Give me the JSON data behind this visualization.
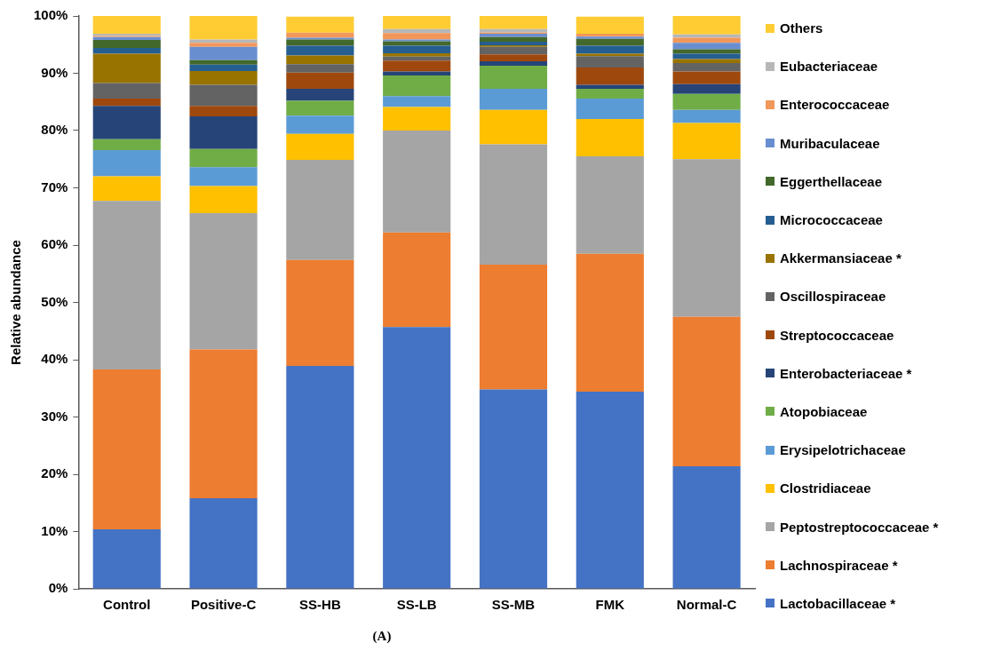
{
  "chart_data": {
    "type": "bar",
    "stacked": true,
    "ylabel": "Relative abundance",
    "legend": "right",
    "grid": false,
    "categories": [
      "Control",
      "Positive-C",
      "SS-HB",
      "SS-LB",
      "SS-MB",
      "FMK",
      "Normal-C"
    ],
    "ylim": [
      0,
      100
    ],
    "yticks": [
      {
        "value": 0,
        "label": "0%"
      },
      {
        "value": 10,
        "label": "10%"
      },
      {
        "value": 20,
        "label": "20%"
      },
      {
        "value": 30,
        "label": "30%"
      },
      {
        "value": 40,
        "label": "40%"
      },
      {
        "value": 50,
        "label": "50%"
      },
      {
        "value": 60,
        "label": "60%"
      },
      {
        "value": 70,
        "label": "70%"
      },
      {
        "value": 80,
        "label": "80%"
      },
      {
        "value": 90,
        "label": "90%"
      },
      {
        "value": 100,
        "label": "100%"
      }
    ],
    "series": [
      {
        "name": "Lactobacillaceae *",
        "color": "#4472c4",
        "values": [
          10.4,
          15.8,
          38.9,
          45.7,
          34.8,
          34.4,
          21.4
        ]
      },
      {
        "name": "Lachnospiraceae *",
        "color": "#ed7d31",
        "values": [
          27.9,
          26.0,
          18.5,
          16.5,
          21.8,
          24.1,
          26.1
        ]
      },
      {
        "name": "Peptostreptococcaceae *",
        "color": "#a5a5a5",
        "values": [
          29.4,
          23.8,
          17.5,
          17.8,
          21.0,
          17.0,
          27.5
        ]
      },
      {
        "name": "Clostridiaceae",
        "color": "#ffc000",
        "values": [
          4.3,
          4.7,
          4.5,
          4.1,
          6.0,
          6.5,
          6.3
        ]
      },
      {
        "name": "Erysipelotrichaceae",
        "color": "#5b9bd5",
        "values": [
          4.6,
          3.3,
          3.2,
          1.9,
          3.7,
          3.6,
          2.3
        ]
      },
      {
        "name": "Atopobiaceae",
        "color": "#70ad47",
        "values": [
          1.9,
          3.2,
          2.6,
          3.6,
          4.0,
          1.7,
          2.8
        ]
      },
      {
        "name": "Enterobacteriaceae *",
        "color": "#264478",
        "values": [
          5.8,
          5.7,
          2.1,
          0.7,
          0.8,
          0.7,
          1.7
        ]
      },
      {
        "name": "Streptococcaceae",
        "color": "#9e480e",
        "values": [
          1.3,
          1.8,
          2.8,
          1.9,
          1.2,
          3.0,
          2.2
        ]
      },
      {
        "name": "Oscillospiraceae",
        "color": "#636363",
        "values": [
          2.7,
          3.7,
          1.5,
          0.7,
          1.3,
          2.0,
          1.5
        ]
      },
      {
        "name": "Akkermansiaceae *",
        "color": "#997300",
        "values": [
          5.1,
          2.4,
          1.5,
          0.6,
          0.3,
          0.4,
          0.7
        ]
      },
      {
        "name": "Micrococcaceae",
        "color": "#255e91",
        "values": [
          1.0,
          1.1,
          1.7,
          1.3,
          0.6,
          1.4,
          0.9
        ]
      },
      {
        "name": "Eggerthellaceae",
        "color": "#43682b",
        "values": [
          1.4,
          0.8,
          1.1,
          0.8,
          0.8,
          1.2,
          0.8
        ]
      },
      {
        "name": "Muribaculaceae",
        "color": "#698ed0",
        "values": [
          0.5,
          2.3,
          0.3,
          0.3,
          0.6,
          0.4,
          1.1
        ]
      },
      {
        "name": "Enterococcaceae",
        "color": "#f1975a",
        "values": [
          0.2,
          0.7,
          0.9,
          1.1,
          0.2,
          0.5,
          0.9
        ]
      },
      {
        "name": "Eubacteriaceae",
        "color": "#b7b7b7",
        "values": [
          0.4,
          0.6,
          null,
          0.7,
          0.6,
          null,
          0.6
        ]
      },
      {
        "name": "Others",
        "color": "#ffcd33",
        "values": [
          3.1,
          4.1,
          2.8,
          2.3,
          2.3,
          3.0,
          3.2
        ]
      }
    ],
    "annotations": [
      "(A)"
    ]
  }
}
